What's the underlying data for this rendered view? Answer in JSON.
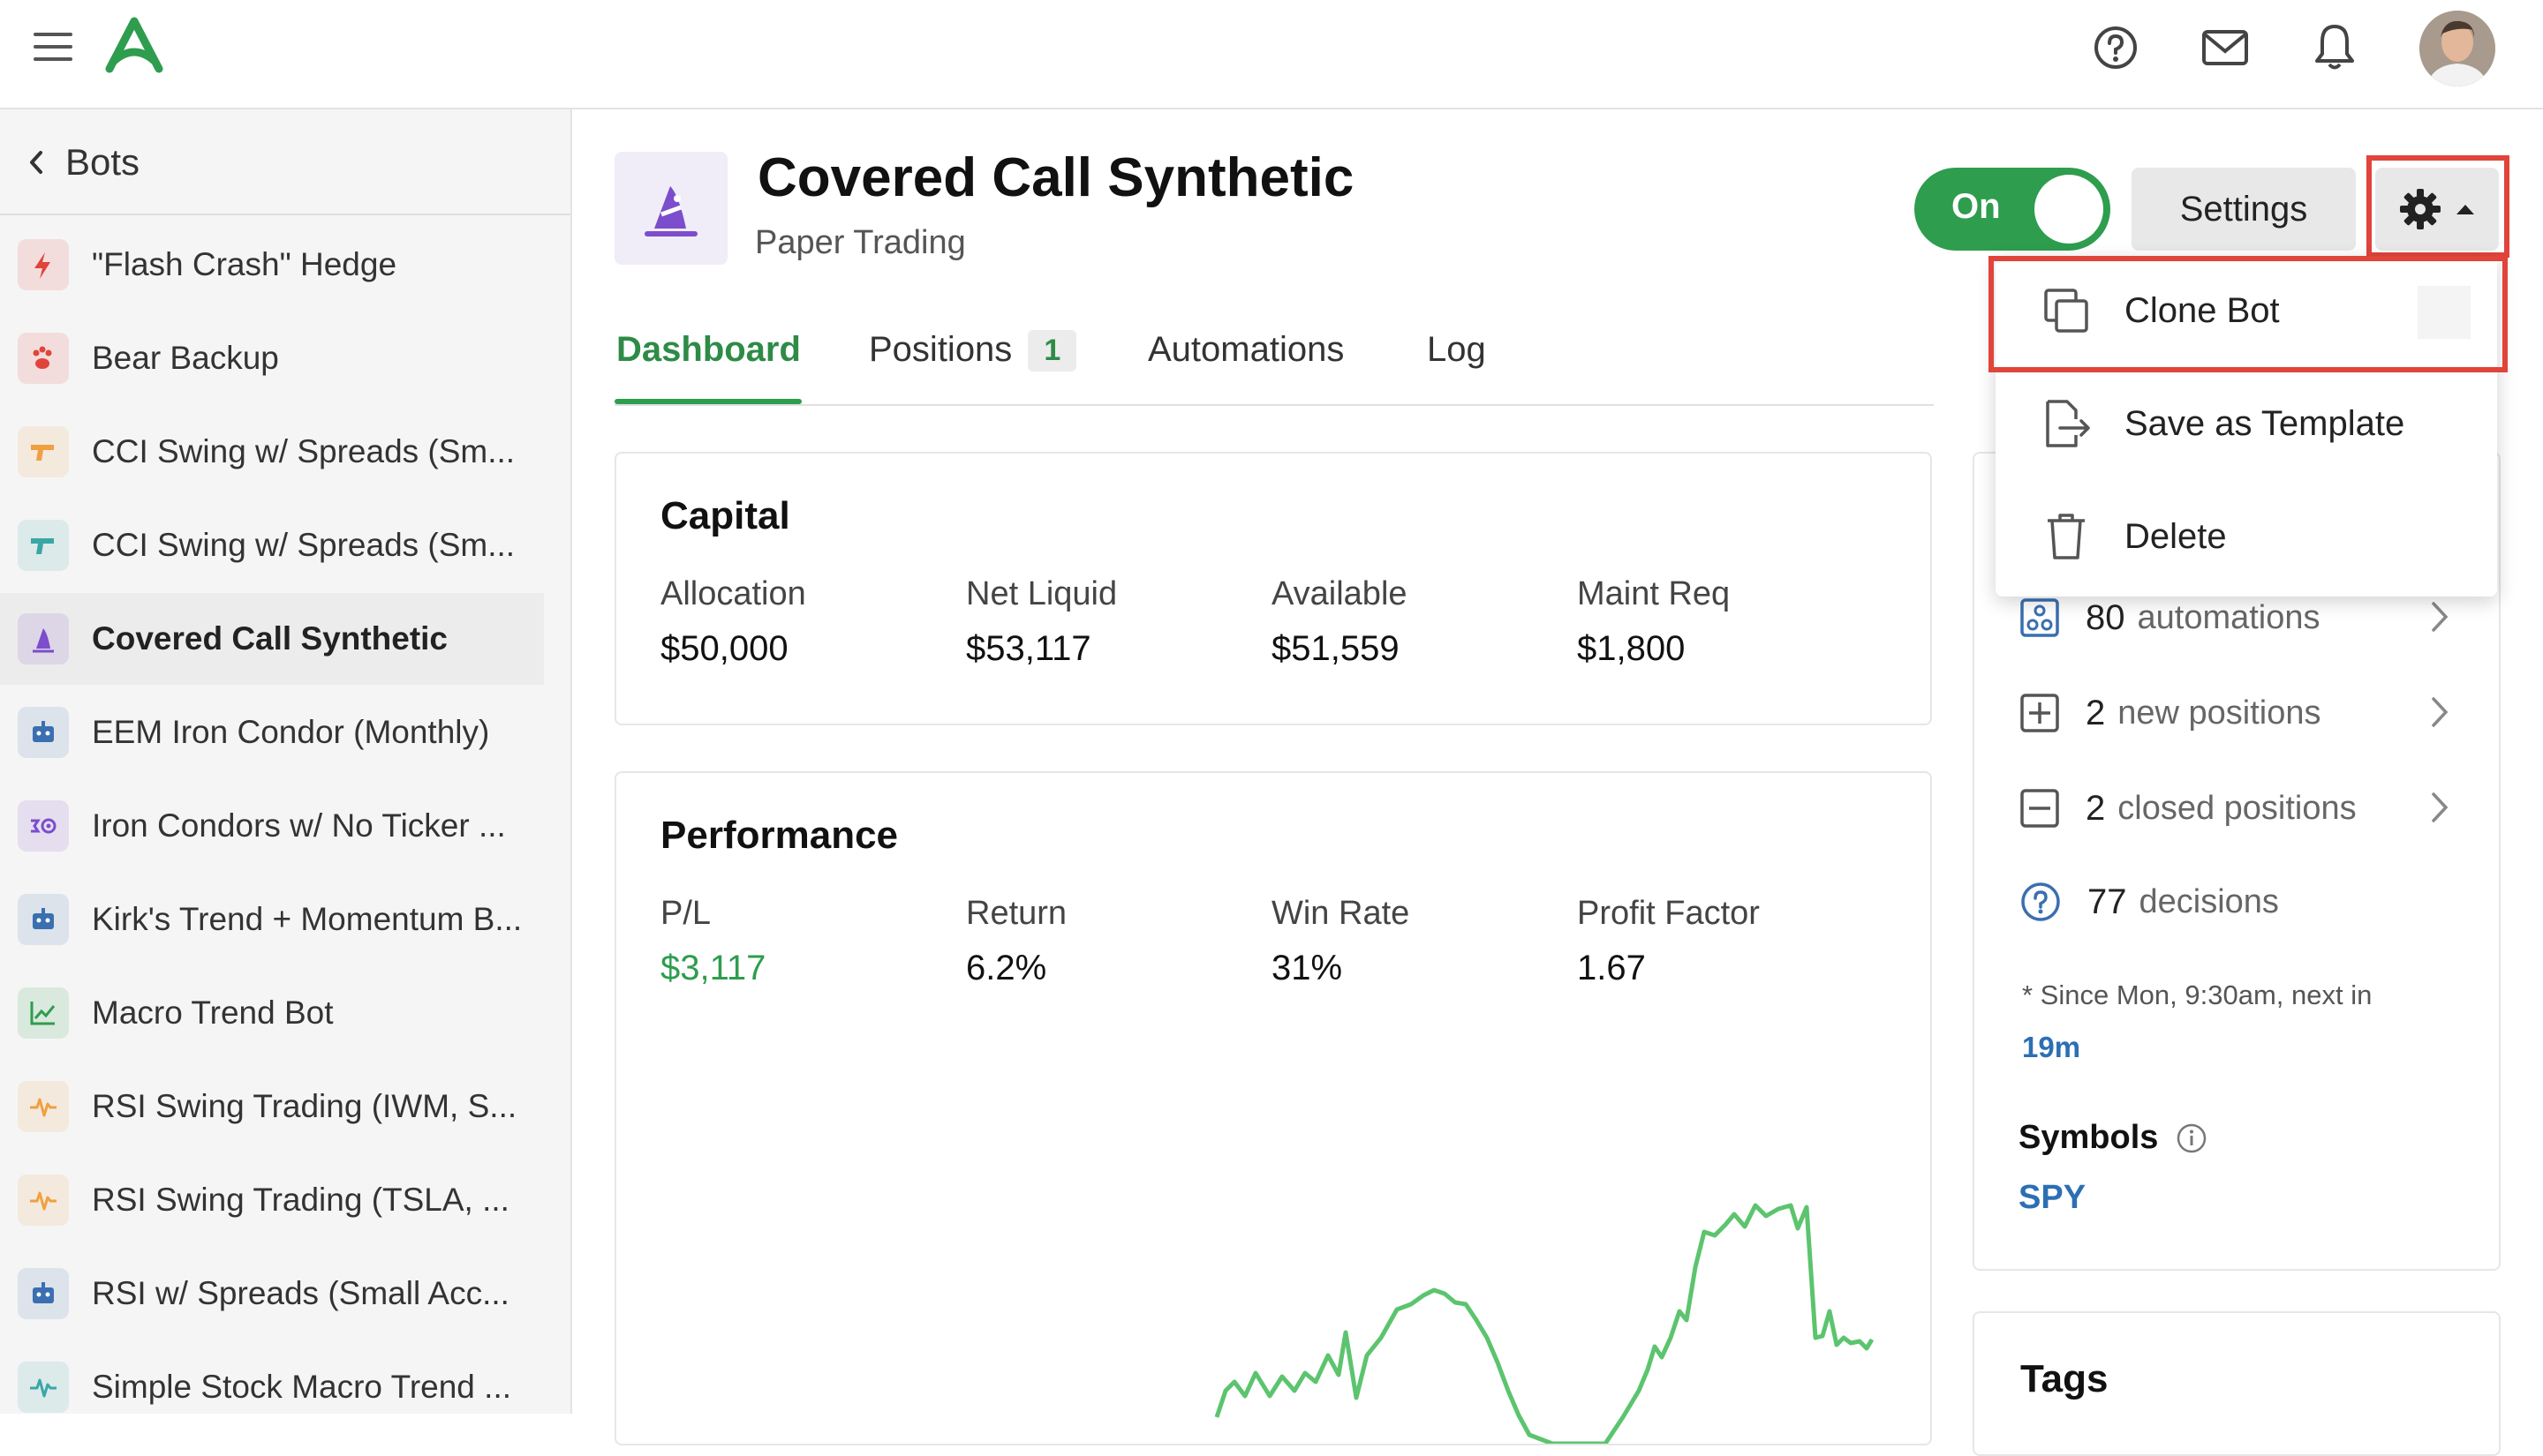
{
  "topbar": {
    "menu_icon": "hamburger-icon",
    "logo_icon": "app-logo",
    "help_icon": "help-circle-icon",
    "mail_icon": "mail-icon",
    "bell_icon": "bell-icon",
    "avatar": "user-avatar"
  },
  "sidebar": {
    "back_label": "Bots",
    "items": [
      {
        "label": "\"Flash Crash\" Hedge",
        "icon": "bolt-icon",
        "color": "#e0443a"
      },
      {
        "label": "Bear Backup",
        "icon": "paw-icon",
        "color": "#e0443a"
      },
      {
        "label": "CCI Swing w/ Spreads (Sm...",
        "icon": "gun-icon",
        "color": "#f0a040"
      },
      {
        "label": "CCI Swing w/ Spreads (Sm...",
        "icon": "gun-icon",
        "color": "#3aa6a6"
      },
      {
        "label": "Covered Call Synthetic",
        "icon": "wizard-icon",
        "color": "#7c4dcc",
        "active": true
      },
      {
        "label": "EEM Iron Condor (Monthly)",
        "icon": "robot-icon",
        "color": "#3a6fb0"
      },
      {
        "label": "Iron Condors w/ No Ticker ...",
        "icon": "condor-icon",
        "color": "#7c4dcc"
      },
      {
        "label": "Kirk's Trend + Momentum B...",
        "icon": "robot-icon",
        "color": "#3a6fb0"
      },
      {
        "label": "Macro Trend Bot",
        "icon": "trend-chart-icon",
        "color": "#2e9d4e"
      },
      {
        "label": "RSI Swing Trading (IWM, S...",
        "icon": "pulse-icon",
        "color": "#f0a040"
      },
      {
        "label": "RSI Swing Trading (TSLA, ...",
        "icon": "pulse-icon",
        "color": "#f0a040"
      },
      {
        "label": "RSI w/ Spreads (Small Acc...",
        "icon": "robot-icon",
        "color": "#3a6fb0"
      },
      {
        "label": "Simple Stock Macro Trend ...",
        "icon": "pulse-icon",
        "color": "#3aa6a6"
      }
    ]
  },
  "header": {
    "title": "Covered Call Synthetic",
    "subtitle": "Paper Trading",
    "toggle_label": "On",
    "settings_label": "Settings",
    "gear_icon": "gear-icon"
  },
  "tabs": [
    {
      "label": "Dashboard",
      "active": true
    },
    {
      "label": "Positions",
      "badge": "1"
    },
    {
      "label": "Automations"
    },
    {
      "label": "Log"
    }
  ],
  "capital": {
    "title": "Capital",
    "stats": [
      {
        "label": "Allocation",
        "value": "$50,000"
      },
      {
        "label": "Net Liquid",
        "value": "$53,117"
      },
      {
        "label": "Available",
        "value": "$51,559"
      },
      {
        "label": "Maint Req",
        "value": "$1,800"
      }
    ]
  },
  "performance": {
    "title": "Performance",
    "stats": [
      {
        "label": "P/L",
        "value": "$3,117",
        "color": "#2e9d4e"
      },
      {
        "label": "Return",
        "value": "6.2%"
      },
      {
        "label": "Win Rate",
        "value": "31%"
      },
      {
        "label": "Profit Factor",
        "value": "1.67"
      }
    ],
    "line_color": "#5cc46e"
  },
  "activity": {
    "rows": [
      {
        "num": "80",
        "label": "automations",
        "icon": "automation-icon"
      },
      {
        "num": "2",
        "label": "new positions",
        "icon": "plus-square-icon"
      },
      {
        "num": "2",
        "label": "closed positions",
        "icon": "minus-square-icon"
      },
      {
        "num": "77",
        "label": "decisions",
        "icon": "question-circle-icon"
      }
    ],
    "since_note": "* Since Mon, 9:30am, next in",
    "next_in": "19m",
    "symbols_label": "Symbols",
    "symbol": "SPY"
  },
  "tags": {
    "title": "Tags"
  },
  "menu": {
    "items": [
      {
        "label": "Clone Bot",
        "icon": "clone-icon"
      },
      {
        "label": "Save as Template",
        "icon": "export-file-icon"
      },
      {
        "label": "Delete",
        "icon": "trash-icon"
      }
    ]
  }
}
